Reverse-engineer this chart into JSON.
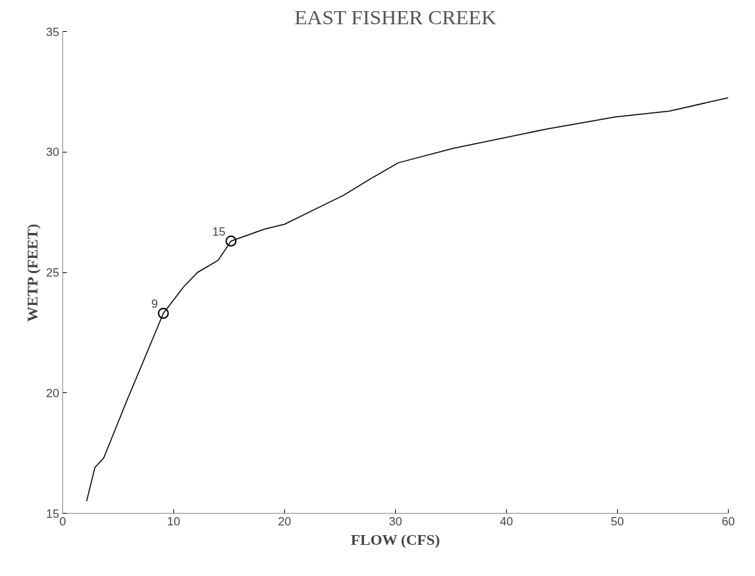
{
  "chart_data": {
    "type": "line",
    "title": "EAST FISHER CREEK",
    "xlabel": "FLOW (CFS)",
    "ylabel": "WETP (FEET)",
    "xlim": [
      0,
      60
    ],
    "ylim": [
      15,
      35
    ],
    "xticks": [
      0,
      10,
      20,
      30,
      40,
      50,
      60
    ],
    "yticks": [
      15,
      20,
      25,
      30,
      35
    ],
    "grid": false,
    "series": [
      {
        "color": "#000000",
        "marker": "none",
        "x": [
          2.15,
          2.9,
          3.7,
          5.8,
          7.8,
          9.07,
          10.9,
          12.15,
          14.0,
          15.17,
          18.2,
          20.0,
          22.2,
          25.3,
          27.8,
          30.25,
          35.2,
          43.6,
          49.8,
          54.7,
          60.0
        ],
        "values": [
          15.5,
          16.9,
          17.3,
          19.7,
          21.9,
          23.3,
          24.4,
          25.0,
          25.5,
          26.3,
          26.8,
          27.0,
          27.5,
          28.2,
          28.9,
          29.55,
          30.15,
          30.95,
          31.45,
          31.7,
          32.25
        ]
      },
      {
        "type": "scatter",
        "color": "#000000",
        "marker": "circle",
        "x": [
          9.07,
          15.17
        ],
        "values": [
          23.3,
          26.3
        ]
      }
    ],
    "annotations": [
      {
        "text": "9",
        "x": 9.07,
        "y": 23.3
      },
      {
        "text": "15",
        "x": 15.17,
        "y": 26.3
      }
    ]
  }
}
